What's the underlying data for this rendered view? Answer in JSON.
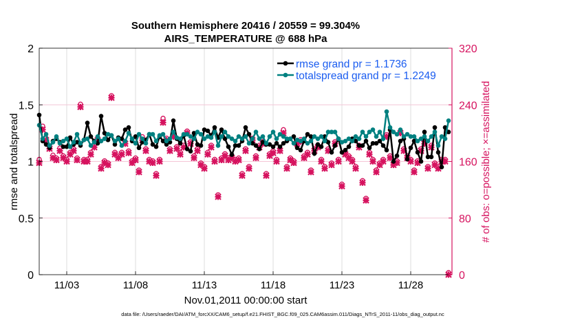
{
  "chart_data": {
    "type": "line",
    "title": [
      "Southern Hemisphere 20416 / 20559 = 99.304%",
      "AIRS_TEMPERATURE @ 688 hPa"
    ],
    "xlabel": "Nov.01,2011 00:00:00 start",
    "ylabel_left": "rmse and totalspread",
    "ylabel_right": "# of obs: o=possible; ×=assimilated",
    "footer": "data file: /Users/raeder/DAI/ATM_forcXX/CAM6_setup/f.e21.FHIST_BGC.f09_025.CAM6assim.011/Diags_NTrS_2011-11/obs_diag_output.nc",
    "x_start_day": 1,
    "x_interval_hours": 6,
    "xlim_days": [
      1,
      31
    ],
    "x_ticks": [
      {
        "day": 3,
        "label": "11/03"
      },
      {
        "day": 8,
        "label": "11/08"
      },
      {
        "day": 13,
        "label": "11/13"
      },
      {
        "day": 18,
        "label": "11/18"
      },
      {
        "day": 23,
        "label": "11/23"
      },
      {
        "day": 28,
        "label": "11/28"
      }
    ],
    "ylim_left": [
      0,
      2
    ],
    "y_ticks_left": [
      "0",
      "0.5",
      "1",
      "1.5",
      "2"
    ],
    "ylim_right": [
      0,
      320
    ],
    "y_ticks_right": [
      "0",
      "80",
      "160",
      "240",
      "320"
    ],
    "legend_position": "top-right",
    "series": [
      {
        "name": "rmse grand pr = 1.1736",
        "color": "#000000",
        "values": [
          1.41,
          1.18,
          1.15,
          1.12,
          1.18,
          1.2,
          1.17,
          1.13,
          1.13,
          1.21,
          1.15,
          1.17,
          1.14,
          1.19,
          1.34,
          1.22,
          1.18,
          1.16,
          1.4,
          1.25,
          1.19,
          1.23,
          1.15,
          1.21,
          1.2,
          1.28,
          1.3,
          1.18,
          1.22,
          1.12,
          1.17,
          1.19,
          1.24,
          1.15,
          1.13,
          1.22,
          1.18,
          1.15,
          1.17,
          1.36,
          1.2,
          1.16,
          1.23,
          1.11,
          1.09,
          1.25,
          1.15,
          1.14,
          1.28,
          1.27,
          1.23,
          1.3,
          1.21,
          1.28,
          1.2,
          1.13,
          1.06,
          1.14,
          1.14,
          1.18,
          1.3,
          1.24,
          1.16,
          1.14,
          1.11,
          1.17,
          1.15,
          1.15,
          1.13,
          1.16,
          1.13,
          1.16,
          1.18,
          1.2,
          1.22,
          1.12,
          1.1,
          1.18,
          1.24,
          1.22,
          1.07,
          1.15,
          1.13,
          1.22,
          1.17,
          1.08,
          1.14,
          1.2,
          1.08,
          1.1,
          1.13,
          1.2,
          1.18,
          1.14,
          1.14,
          1.18,
          1.12,
          1.16,
          1.16,
          1.18,
          1.14,
          1.1,
          1.28,
          1.0,
          1.05,
          1.18,
          1.2,
          1.02,
          1.12,
          1.18,
          1.08,
          1.0,
          1.26,
          1.04,
          1.04,
          1.3,
          1.08,
          0.95,
          1.3,
          1.26
        ]
      },
      {
        "name": "totalspread grand pr = 1.2249",
        "color": "#008080",
        "values": [
          1.32,
          1.2,
          1.24,
          1.14,
          1.17,
          1.22,
          1.16,
          1.18,
          1.2,
          1.13,
          1.17,
          1.24,
          1.16,
          1.19,
          1.2,
          1.14,
          1.17,
          1.22,
          1.18,
          1.2,
          1.24,
          1.23,
          1.18,
          1.2,
          1.14,
          1.18,
          1.25,
          1.2,
          1.16,
          1.24,
          1.2,
          1.16,
          1.24,
          1.24,
          1.18,
          1.23,
          1.24,
          1.18,
          1.2,
          1.26,
          1.21,
          1.2,
          1.24,
          1.24,
          1.22,
          1.2,
          1.26,
          1.24,
          1.2,
          1.22,
          1.21,
          1.26,
          1.14,
          1.22,
          1.26,
          1.22,
          1.2,
          1.18,
          1.22,
          1.2,
          1.22,
          1.16,
          1.2,
          1.26,
          1.2,
          1.22,
          1.16,
          1.22,
          1.26,
          1.2,
          1.24,
          1.22,
          1.2,
          1.2,
          1.16,
          1.19,
          1.18,
          1.2,
          1.16,
          1.18,
          1.22,
          1.2,
          1.22,
          1.18,
          1.26,
          1.26,
          1.26,
          1.2,
          1.17,
          1.18,
          1.2,
          1.18,
          1.22,
          1.2,
          1.26,
          1.22,
          1.26,
          1.28,
          1.22,
          1.26,
          1.2,
          1.44,
          1.3,
          1.26,
          1.24,
          1.28,
          1.22,
          1.24,
          1.22,
          1.22,
          1.18,
          1.2,
          1.22,
          1.18,
          1.22,
          1.26,
          1.14,
          1.22,
          1.2,
          1.36
        ]
      }
    ],
    "obs_color": "#d6135f",
    "obs_possible": [
      160,
      207,
      190,
      178,
      166,
      162,
      176,
      165,
      160,
      170,
      175,
      162,
      238,
      160,
      160,
      170,
      180,
      191,
      150,
      158,
      155,
      250,
      170,
      165,
      170,
      185,
      172,
      158,
      162,
      145,
      192,
      175,
      160,
      158,
      140,
      160,
      218,
      190,
      175,
      197,
      178,
      170,
      180,
      200,
      185,
      165,
      175,
      155,
      150,
      170,
      180,
      160,
      110,
      162,
      168,
      162,
      165,
      160,
      162,
      140,
      175,
      150,
      190,
      165,
      180,
      185,
      140,
      168,
      172,
      160,
      175,
      202,
      150,
      162,
      158,
      185,
      188,
      165,
      170,
      145,
      175,
      180,
      160,
      150,
      175,
      155,
      185,
      160,
      125,
      170,
      165,
      160,
      150,
      180,
      130,
      105,
      170,
      160,
      145,
      155,
      160,
      195,
      165,
      155,
      158,
      200,
      175,
      165,
      160,
      145,
      158,
      175,
      187,
      150,
      180,
      155,
      150,
      160,
      160,
      0
    ],
    "obs_assimilated": [
      158,
      205,
      190,
      178,
      165,
      162,
      175,
      165,
      160,
      170,
      175,
      162,
      237,
      160,
      160,
      170,
      180,
      190,
      150,
      158,
      155,
      250,
      170,
      165,
      170,
      185,
      172,
      158,
      162,
      145,
      190,
      175,
      160,
      158,
      140,
      160,
      215,
      190,
      175,
      195,
      178,
      170,
      180,
      200,
      185,
      165,
      175,
      155,
      150,
      170,
      180,
      160,
      110,
      162,
      168,
      162,
      165,
      160,
      162,
      140,
      175,
      150,
      190,
      165,
      180,
      185,
      140,
      168,
      172,
      160,
      175,
      200,
      150,
      162,
      158,
      185,
      188,
      165,
      170,
      145,
      175,
      180,
      160,
      150,
      175,
      155,
      185,
      160,
      125,
      170,
      165,
      160,
      150,
      180,
      130,
      105,
      170,
      160,
      145,
      155,
      160,
      195,
      165,
      155,
      158,
      200,
      175,
      165,
      160,
      145,
      158,
      175,
      185,
      150,
      180,
      155,
      150,
      160,
      160,
      0
    ]
  }
}
